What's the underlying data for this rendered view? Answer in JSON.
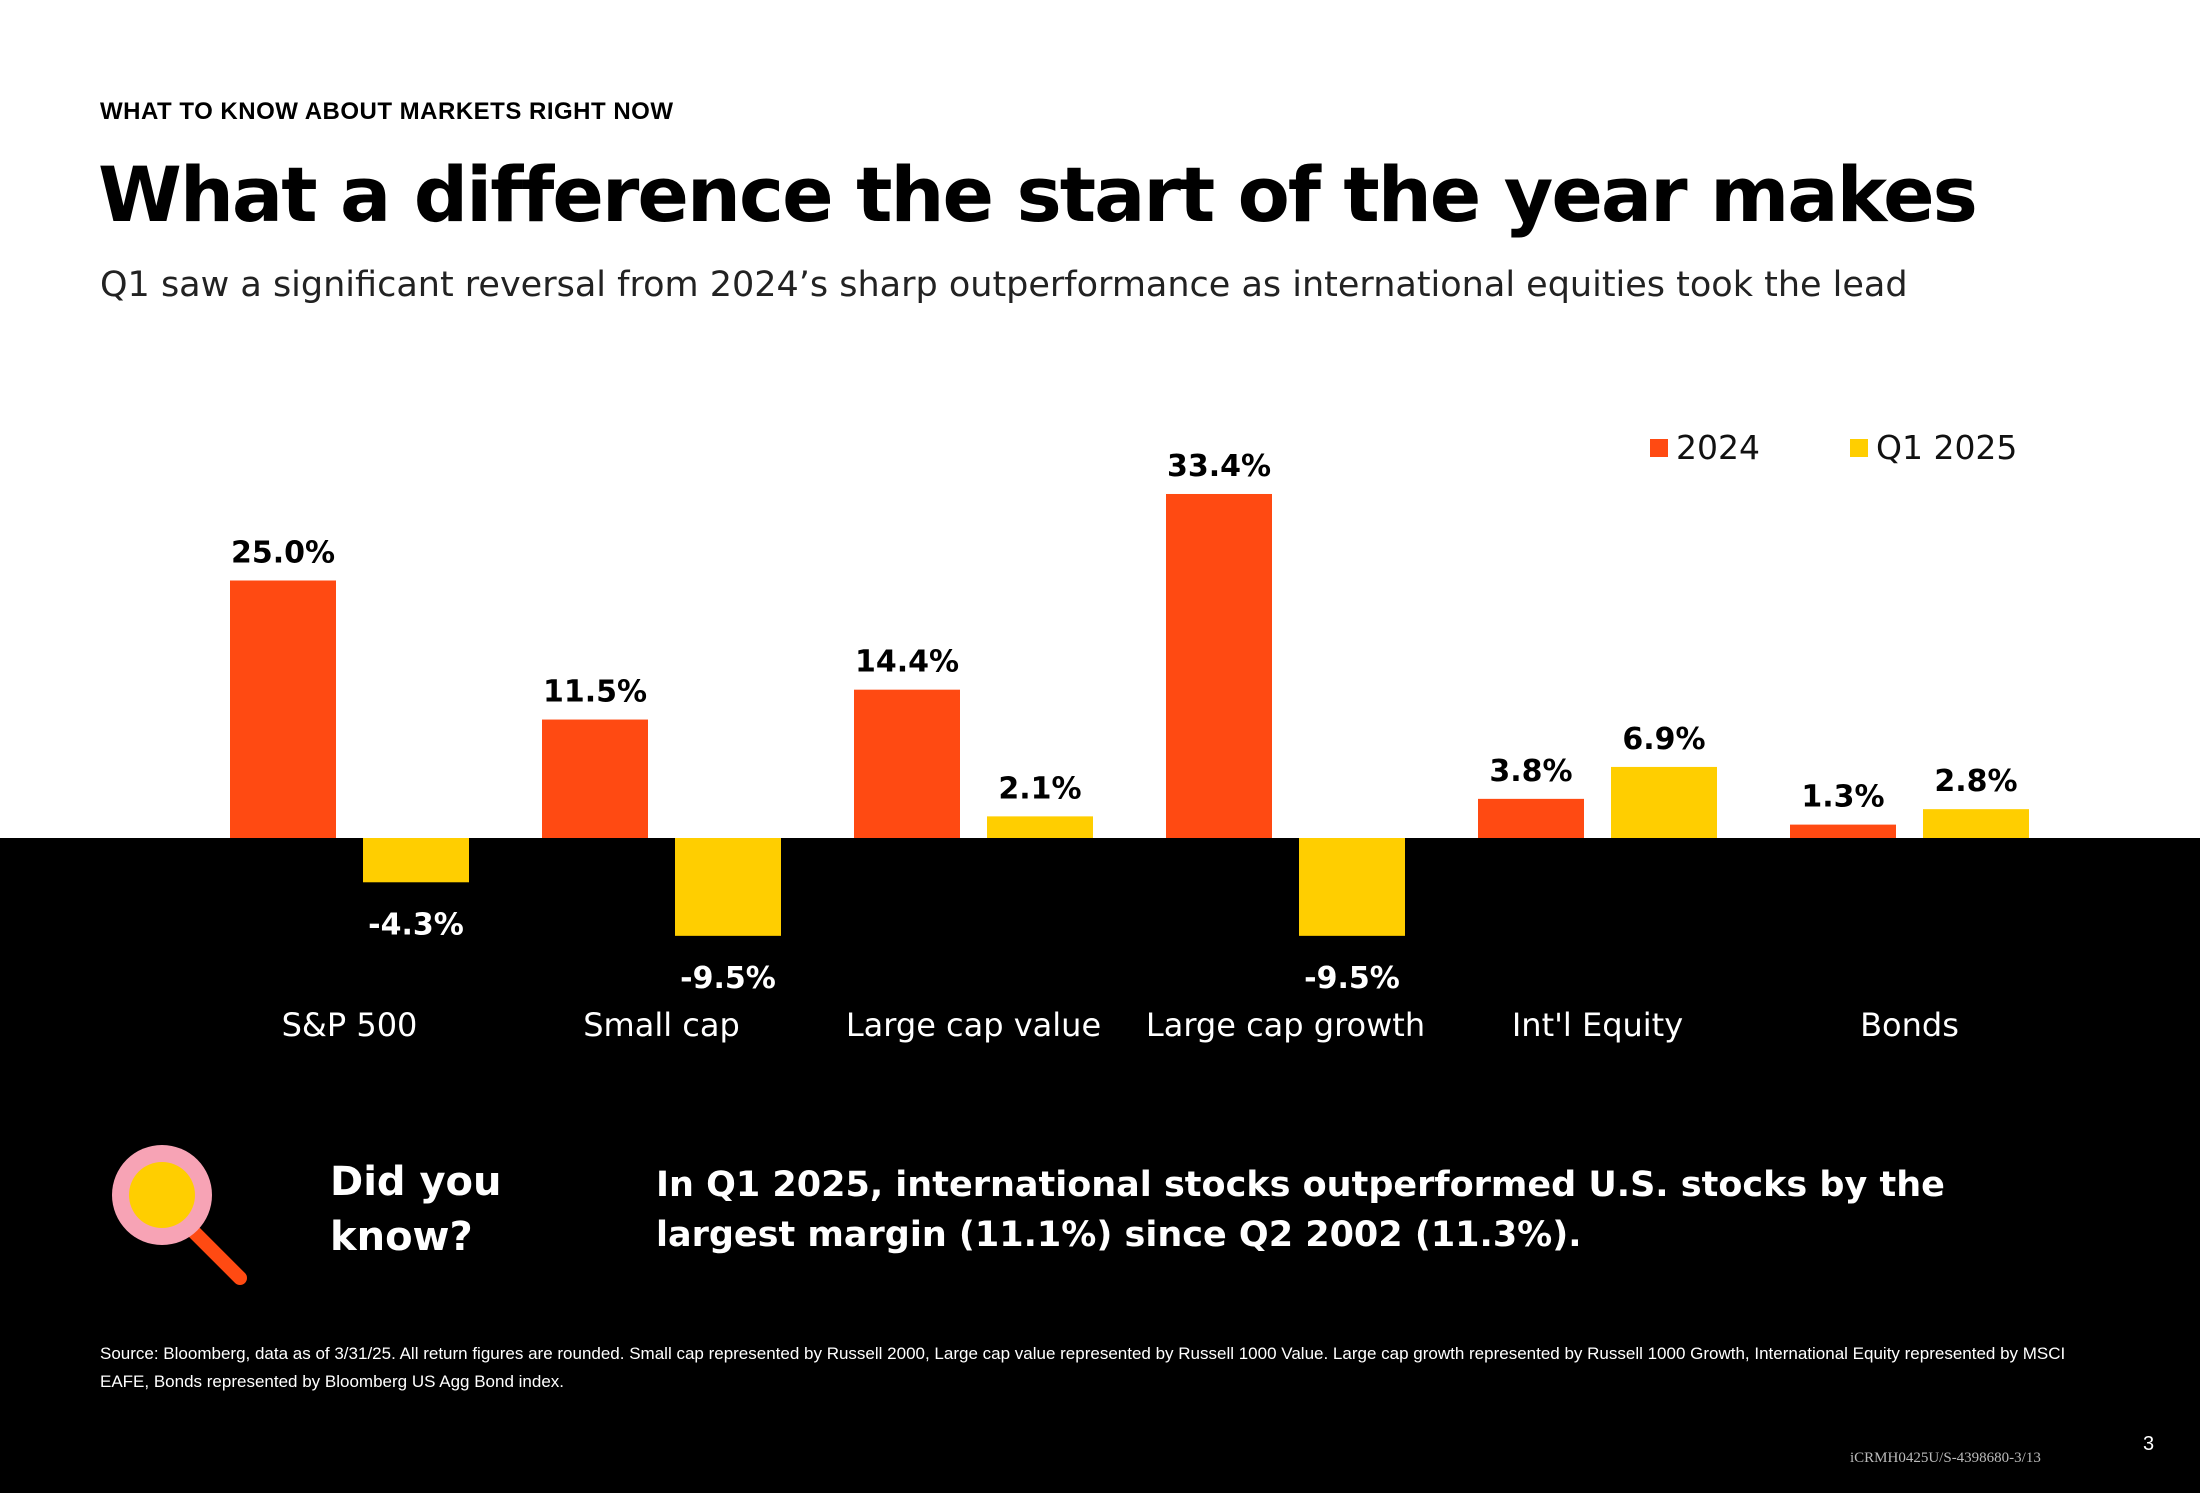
{
  "header": {
    "eyebrow": "WHAT TO KNOW ABOUT MARKETS RIGHT NOW",
    "title": "What a difference the start of the year makes",
    "subtitle": "Q1 saw a significant reversal from 2024’s sharp outperformance as international equities took the lead"
  },
  "colors": {
    "series_2024": "#FF4A12",
    "series_q1_2025": "#FFCE00",
    "panel": "#000000",
    "icon_ring": "#F7A3B5",
    "icon_handle": "#FF4A12",
    "icon_lens": "#FFCE00"
  },
  "chart_data": {
    "type": "bar",
    "categories": [
      "S&P 500",
      "Small cap",
      "Large cap value",
      "Large cap growth",
      "Int'l Equity",
      "Bonds"
    ],
    "series": [
      {
        "name": "2024",
        "values": [
          25.0,
          11.5,
          14.4,
          33.4,
          3.8,
          1.3
        ],
        "labels": [
          "25.0%",
          "11.5%",
          "14.4%",
          "33.4%",
          "3.8%",
          "1.3%"
        ]
      },
      {
        "name": "Q1 2025",
        "values": [
          -4.3,
          -9.5,
          2.1,
          -9.5,
          6.9,
          2.8
        ],
        "labels": [
          "-4.3%",
          "-9.5%",
          "2.1%",
          "-9.5%",
          "6.9%",
          "2.8%"
        ]
      }
    ],
    "legend_position": "top-right",
    "grid": false
  },
  "callout": {
    "icon": "magnifying-glass-icon",
    "heading_line1": "Did you",
    "heading_line2": "know?",
    "text": "In Q1 2025, international stocks outperformed U.S. stocks by the largest margin (11.1%) since Q2 2002 (11.3%)."
  },
  "footer": {
    "source": "Source: Bloomberg, data as of 3/31/25. All return figures are rounded. Small cap represented by  Russell 2000, Large cap value represented by Russell 1000 Value. Large cap growth represented by Russell 1000 Growth,  International Equity represented by MSCI EAFE, Bonds represented by Bloomberg US Agg Bond index.",
    "page_number": "3",
    "doc_code": "iCRMH0425U/S-4398680-3/13"
  }
}
